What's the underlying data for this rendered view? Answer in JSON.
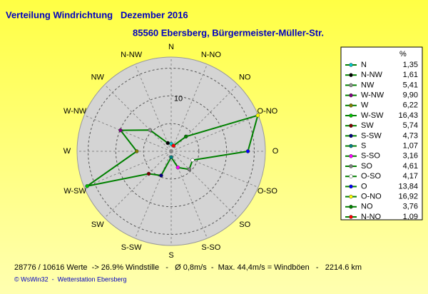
{
  "chart_data": {
    "type": "radar",
    "title": "Verteilung Windrichtung   Dezember 2016",
    "subtitle": "85560 Ebersberg, Bürgermeister-Müller-Str.",
    "footer": "28776 / 10616 Werte  -> 26.9% Windstille   -   Ø 0,8m/s  -  Max. 44,4m/s = Windböen   -   2214.6 km",
    "credit": "© WsWin32  -  Wetterstation Ebersberg",
    "legend_unit": "%",
    "categories": [
      "N",
      "N-NW",
      "NW",
      "W-NW",
      "W",
      "W-SW",
      "SW",
      "S-SW",
      "S",
      "S-SO",
      "SO",
      "O-SO",
      "O",
      "O-NO",
      "NO",
      "N-NO"
    ],
    "values": [
      1.35,
      1.61,
      5.41,
      9.9,
      6.22,
      16.43,
      5.74,
      4.73,
      1.07,
      3.16,
      4.61,
      4.17,
      13.84,
      16.92,
      3.76,
      1.09
    ],
    "value_labels": [
      "1,35",
      "1,61",
      "5,41",
      "9,90",
      "6,22",
      "16,43",
      "5,74",
      "4,73",
      "1,07",
      "3,16",
      "4,61",
      "4,17",
      "13,84",
      "16,92",
      "3,76",
      "1,09"
    ],
    "marker_colors": [
      "#00c8c8",
      "#000000",
      "#909090",
      "#800080",
      "#808000",
      "#00c000",
      "#800000",
      "#000080",
      "#008080",
      "#ff00ff",
      "#808080",
      "#ffffff",
      "#0000ff",
      "#ffff00",
      "#008000",
      "#ff0000"
    ],
    "color": "#008000",
    "rlim": [
      0,
      17
    ],
    "rticks": [
      10
    ],
    "rgrid": [
      5,
      10,
      15
    ]
  }
}
